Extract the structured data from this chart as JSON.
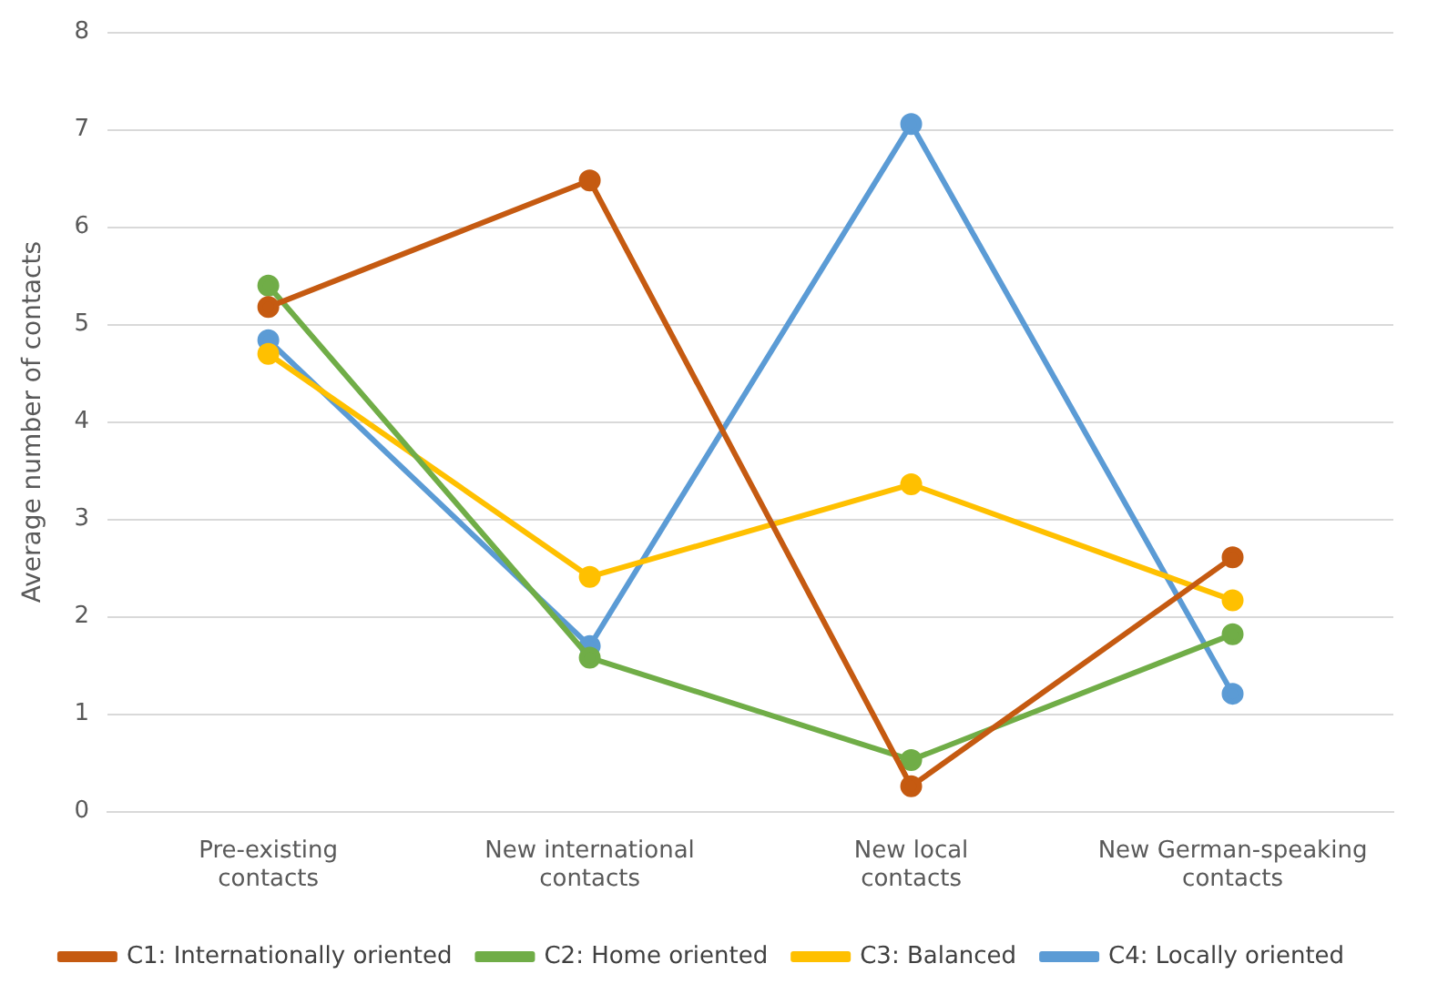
{
  "chart_data": {
    "type": "line",
    "ylabel": "Average number of contacts",
    "categories": [
      "Pre-existing contacts",
      "New international contacts",
      "New local contacts",
      "New German-speaking contacts"
    ],
    "series": [
      {
        "name": "C1: Internationally oriented",
        "color": "#c55a11",
        "values": [
          5.18,
          6.48,
          0.26,
          2.61
        ]
      },
      {
        "name": "C2: Home oriented",
        "color": "#70ad47",
        "values": [
          5.4,
          1.58,
          0.53,
          1.82
        ]
      },
      {
        "name": "C3: Balanced",
        "color": "#ffc000",
        "values": [
          4.7,
          2.41,
          3.36,
          2.17
        ]
      },
      {
        "name": "C4: Locally oriented",
        "color": "#5b9bd5",
        "values": [
          4.84,
          1.7,
          7.06,
          1.21
        ]
      }
    ],
    "ylim": [
      0,
      8
    ],
    "yticks": [
      0,
      1,
      2,
      3,
      4,
      5,
      6,
      7,
      8
    ],
    "grid": "y",
    "legend": "bottom",
    "marker": "circle",
    "line_style": "solid"
  }
}
